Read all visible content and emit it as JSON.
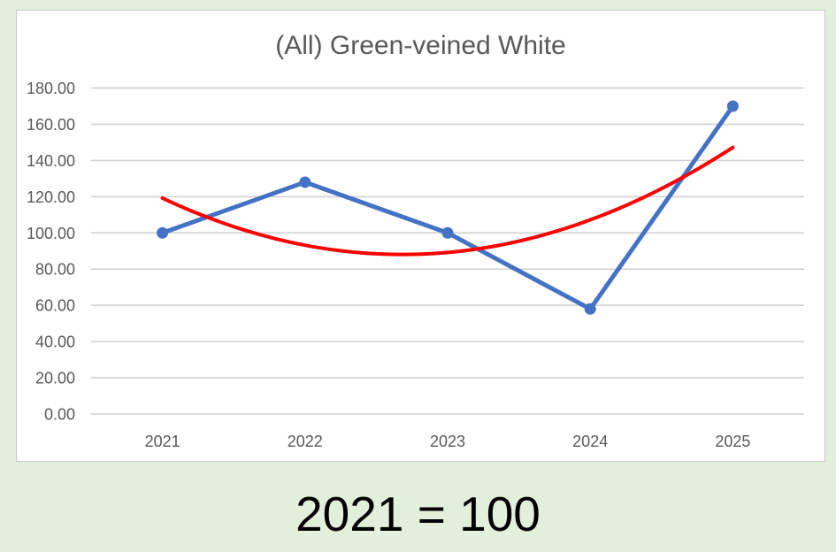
{
  "page": {
    "background_color": "#e2efda"
  },
  "card": {
    "background_color": "#ffffff",
    "border_color": "#c8c8c8"
  },
  "footer": {
    "text": "2021 = 100"
  },
  "chart_data": {
    "type": "line",
    "title": "(All) Green-veined White",
    "title_color": "#595959",
    "categories": [
      "2021",
      "2022",
      "2023",
      "2024",
      "2025"
    ],
    "series": [
      {
        "name": "(All) Green-veined White",
        "kind": "data",
        "values": [
          100,
          128,
          100,
          58,
          170
        ],
        "color": "#4472C4",
        "line_width": 5,
        "markers": true,
        "marker_radius": 6.5
      },
      {
        "name": "polynomial-trendline",
        "kind": "polynomial_trendline",
        "order": 2,
        "fit_of": 0,
        "color": "#FF0000",
        "line_width": 4
      }
    ],
    "ylim": [
      0,
      180
    ],
    "ytick_step": 20,
    "ytick_labels": [
      "0.00",
      "20.00",
      "40.00",
      "60.00",
      "80.00",
      "100.00",
      "120.00",
      "140.00",
      "160.00",
      "180.00"
    ],
    "grid": true,
    "gridline_color": "#cfcfcf",
    "axis_text_color": "#595959",
    "legend": "none"
  }
}
